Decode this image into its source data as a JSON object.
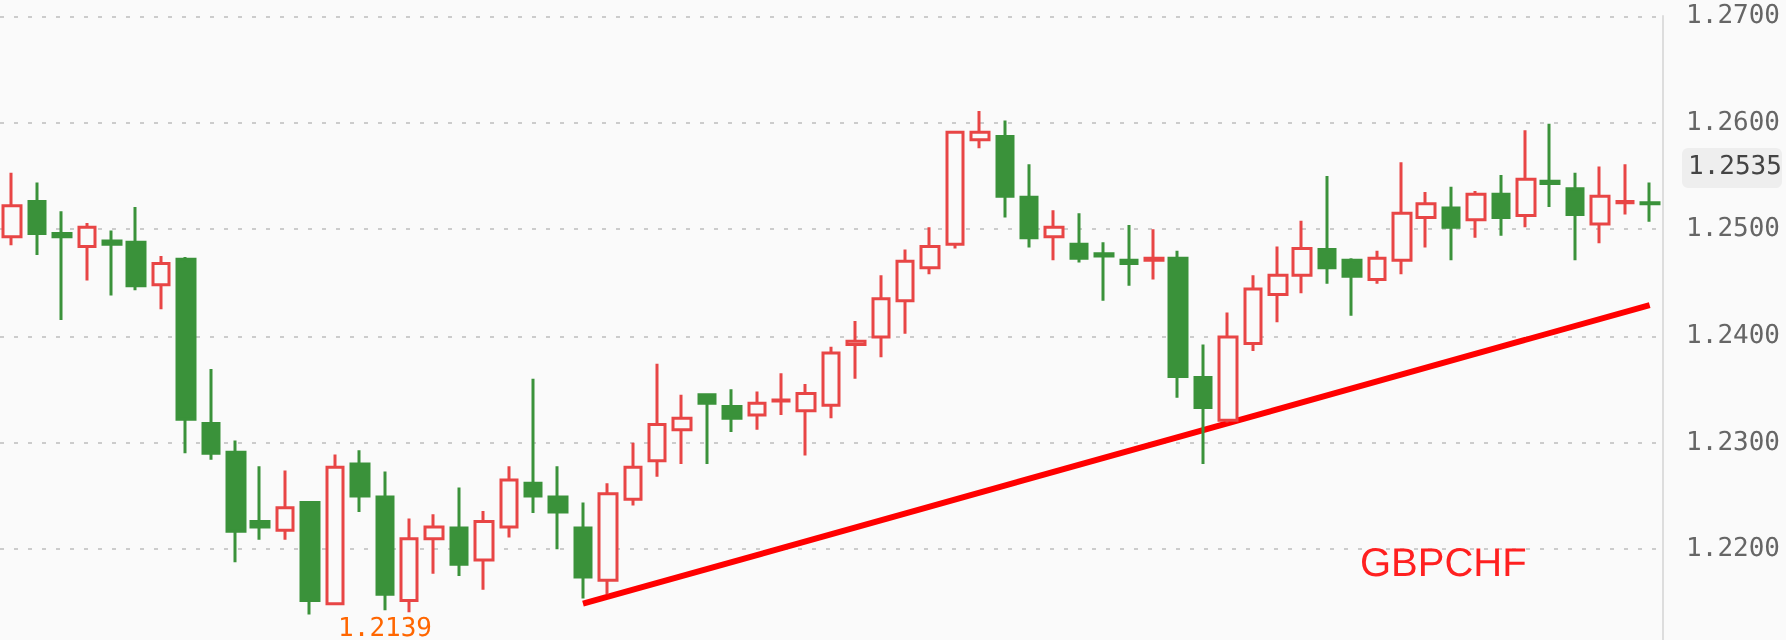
{
  "chart_data": {
    "type": "candlestick",
    "categories": [
      null,
      null,
      null,
      null,
      null,
      null,
      null,
      null,
      null,
      null,
      null,
      null,
      null,
      null,
      null,
      null,
      null,
      null,
      null,
      null,
      null,
      null,
      null,
      null,
      null,
      null,
      null,
      null,
      null,
      null,
      null,
      null,
      null,
      null,
      null,
      null,
      null,
      null,
      null,
      null,
      null,
      null,
      null,
      null,
      null,
      null,
      null,
      null,
      null,
      null,
      null,
      null,
      null,
      null,
      null,
      null,
      null,
      null,
      null,
      null,
      null,
      null,
      null,
      null,
      null,
      null,
      null
    ],
    "series": [
      {
        "ohlc": [
          [
            1.2493,
            1.2553,
            1.2485,
            1.2522
          ],
          [
            1.2526,
            1.2544,
            1.2476,
            1.2496
          ],
          [
            1.2496,
            1.2517,
            1.2415,
            1.2493
          ],
          [
            1.2484,
            1.2506,
            1.2452,
            1.2502
          ],
          [
            1.2489,
            1.2499,
            1.2438,
            1.2486
          ],
          [
            1.2488,
            1.2521,
            1.2443,
            1.2447
          ],
          [
            1.2448,
            1.2475,
            1.2425,
            1.2468
          ],
          [
            1.2472,
            1.2474,
            1.229,
            1.2322
          ],
          [
            1.2318,
            1.2369,
            1.2284,
            1.229
          ],
          [
            1.2291,
            1.2302,
            1.2188,
            1.2217
          ],
          [
            1.2226,
            1.2278,
            1.2209,
            1.2221
          ],
          [
            1.2218,
            1.2274,
            1.2209,
            1.2239
          ],
          [
            1.2244,
            1.2245,
            1.2139,
            1.2152
          ],
          [
            1.2149,
            1.2289,
            1.2149,
            1.2277
          ],
          [
            1.228,
            1.2293,
            1.2235,
            1.225
          ],
          [
            1.2249,
            1.2273,
            1.2143,
            1.2158
          ],
          [
            1.2152,
            1.2229,
            1.2141,
            1.221
          ],
          [
            1.221,
            1.2233,
            1.2177,
            1.2221
          ],
          [
            1.222,
            1.2258,
            1.2175,
            1.2186
          ],
          [
            1.219,
            1.2236,
            1.2162,
            1.2226
          ],
          [
            1.2221,
            1.2278,
            1.2211,
            1.2265
          ],
          [
            1.2262,
            1.236,
            1.2234,
            1.225
          ],
          [
            1.2249,
            1.2278,
            1.22,
            1.2235
          ],
          [
            1.222,
            1.2244,
            1.2154,
            1.2174
          ],
          [
            1.2171,
            1.2262,
            1.2158,
            1.2252
          ],
          [
            1.2247,
            1.23,
            1.2241,
            1.2277
          ],
          [
            1.2283,
            1.2374,
            1.2268,
            1.2317
          ],
          [
            1.2312,
            1.2345,
            1.228,
            1.2323
          ],
          [
            1.2345,
            1.2346,
            1.228,
            1.2337
          ],
          [
            1.2334,
            1.235,
            1.231,
            1.2323
          ],
          [
            1.2326,
            1.2348,
            1.2312,
            1.2337
          ],
          [
            1.2339,
            1.2365,
            1.2326,
            1.234
          ],
          [
            1.233,
            1.2355,
            1.2288,
            1.2346
          ],
          [
            1.2335,
            1.239,
            1.2323,
            1.2384
          ],
          [
            1.2392,
            1.2414,
            1.236,
            1.2395
          ],
          [
            1.2399,
            1.2457,
            1.238,
            1.2435
          ],
          [
            1.2433,
            1.2481,
            1.2402,
            1.247
          ],
          [
            1.2464,
            1.2502,
            1.2458,
            1.2484
          ],
          [
            1.2486,
            1.2591,
            1.2482,
            1.2591
          ],
          [
            1.2584,
            1.2611,
            1.2576,
            1.2591
          ],
          [
            1.2587,
            1.2602,
            1.2511,
            1.2531
          ],
          [
            1.253,
            1.2561,
            1.2483,
            1.2492
          ],
          [
            1.2493,
            1.2518,
            1.2471,
            1.2502
          ],
          [
            1.2486,
            1.2515,
            1.2469,
            1.2473
          ],
          [
            1.2477,
            1.2488,
            1.2433,
            1.2475
          ],
          [
            1.2471,
            1.2504,
            1.2447,
            1.2468
          ],
          [
            1.2471,
            1.25,
            1.2453,
            1.2473
          ],
          [
            1.2473,
            1.248,
            1.2342,
            1.2362
          ],
          [
            1.2361,
            1.2392,
            1.228,
            1.2333
          ],
          [
            1.2321,
            1.2422,
            1.2319,
            1.2399
          ],
          [
            1.2393,
            1.2457,
            1.2386,
            1.2444
          ],
          [
            1.2439,
            1.2484,
            1.2413,
            1.2457
          ],
          [
            1.2457,
            1.2508,
            1.244,
            1.2482
          ],
          [
            1.2481,
            1.255,
            1.2449,
            1.2464
          ],
          [
            1.2471,
            1.2473,
            1.2419,
            1.2456
          ],
          [
            1.2453,
            1.248,
            1.2449,
            1.2473
          ],
          [
            1.2471,
            1.2563,
            1.2458,
            1.2515
          ],
          [
            1.2511,
            1.2535,
            1.2483,
            1.2524
          ],
          [
            1.252,
            1.254,
            1.2471,
            1.2502
          ],
          [
            1.2509,
            1.2536,
            1.2492,
            1.2533
          ],
          [
            1.2533,
            1.2551,
            1.2494,
            1.2511
          ],
          [
            1.2513,
            1.2593,
            1.2502,
            1.2547
          ],
          [
            1.2545,
            1.2599,
            1.2521,
            1.2543
          ],
          [
            1.2538,
            1.2553,
            1.2471,
            1.2514
          ],
          [
            1.2505,
            1.2559,
            1.2487,
            1.2531
          ],
          [
            1.2525,
            1.2561,
            1.2514,
            1.2526
          ],
          [
            1.2525,
            1.2544,
            1.2507,
            1.2524
          ]
        ],
        "colors": [
          "#e84545",
          "#3a923a",
          "#3a923a",
          "#e84545",
          "#3a923a",
          "#3a923a",
          "#e84545",
          "#3a923a",
          "#3a923a",
          "#3a923a",
          "#3a923a",
          "#e84545",
          "#3a923a",
          "#e84545",
          "#3a923a",
          "#3a923a",
          "#e84545",
          "#e84545",
          "#3a923a",
          "#e84545",
          "#e84545",
          "#3a923a",
          "#3a923a",
          "#3a923a",
          "#e84545",
          "#e84545",
          "#e84545",
          "#e84545",
          "#3a923a",
          "#3a923a",
          "#e84545",
          "#e84545",
          "#e84545",
          "#e84545",
          "#e84545",
          "#e84545",
          "#e84545",
          "#e84545",
          "#e84545",
          "#e84545",
          "#3a923a",
          "#3a923a",
          "#e84545",
          "#3a923a",
          "#3a923a",
          "#3a923a",
          "#e84545",
          "#3a923a",
          "#3a923a",
          "#e84545",
          "#e84545",
          "#e84545",
          "#e84545",
          "#3a923a",
          "#3a923a",
          "#e84545",
          "#e84545",
          "#e84545",
          "#3a923a",
          "#e84545",
          "#3a923a",
          "#e84545",
          "#3a923a",
          "#3a923a",
          "#e84545",
          "#e84545",
          "#3a923a"
        ]
      },
      {
        "type": "line",
        "values": [
          null,
          null,
          null,
          null,
          null,
          null,
          null,
          null,
          null,
          null,
          null,
          null,
          null,
          null,
          null,
          null,
          null,
          null,
          null,
          null,
          null,
          null,
          null,
          1.2149,
          null,
          null,
          null,
          null,
          null,
          null,
          null,
          null,
          null,
          null,
          null,
          null,
          null,
          null,
          null,
          null,
          null,
          null,
          null,
          null,
          null,
          null,
          null,
          null,
          null,
          null,
          null,
          null,
          null,
          null,
          null,
          null,
          null,
          null,
          null,
          null,
          null,
          null,
          null,
          null,
          null,
          null,
          1.2429
        ],
        "color": "#ff0000"
      }
    ],
    "ylim": [
      1.2115,
      1.27
    ],
    "yticks": [
      {
        "value": 1.22,
        "label": "1.2200"
      },
      {
        "value": 1.23,
        "label": "1.2300"
      },
      {
        "value": 1.24,
        "label": "1.2400"
      },
      {
        "value": 1.25,
        "label": "1.2500"
      },
      {
        "value": 1.26,
        "label": "1.2600"
      },
      {
        "value": 1.27,
        "label": "1.2700"
      }
    ],
    "grid": "y",
    "tick_labels": "y",
    "annotations": [
      {
        "text": "1.2139",
        "y": 1.2139
      },
      "1.2535",
      "GBPCHF"
    ]
  }
}
